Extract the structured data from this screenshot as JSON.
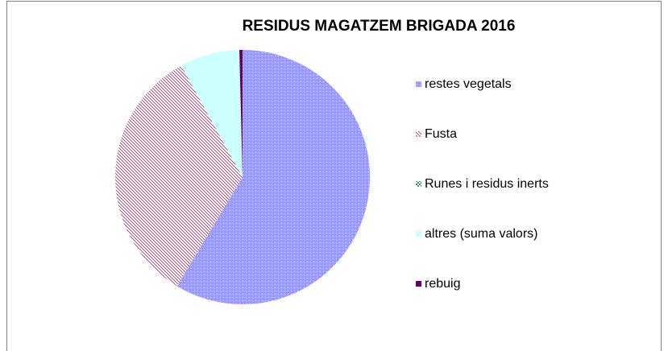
{
  "chart_data": {
    "type": "pie",
    "title": "RESIDUS MAGATZEM  BRIGADA 2016",
    "categories": [
      "restes vegetals",
      "Fusta",
      "Runes i residus inerts",
      "altres (suma valors)",
      "rebuig"
    ],
    "values": [
      58.6,
      33.4,
      0,
      7.6,
      0.4
    ],
    "colors": [
      "#9999ff",
      "#993366",
      "#339966",
      "#ccffff",
      "#660066"
    ],
    "legend": "right"
  }
}
